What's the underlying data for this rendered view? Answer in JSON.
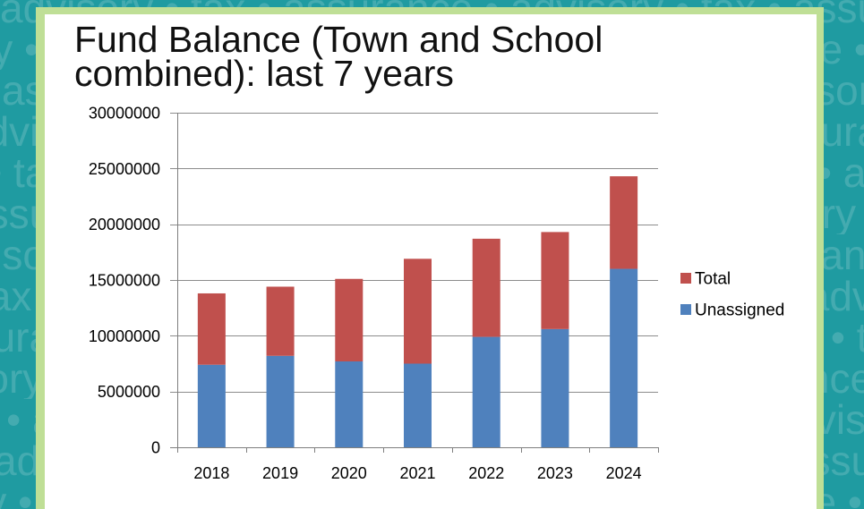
{
  "background": {
    "watermark_text": "advisory • tax • assurance •",
    "color": "#1f9ba1",
    "frame_color": "#bfdf96"
  },
  "chart_data": {
    "type": "bar",
    "stacked": true,
    "title": "Fund Balance (Town and School combined): last 7 years",
    "xlabel": "",
    "ylabel": "",
    "categories": [
      "2018",
      "2019",
      "2020",
      "2021",
      "2022",
      "2023",
      "2024"
    ],
    "series": [
      {
        "name": "Unassigned",
        "color": "#4f81bd",
        "values": [
          7400000,
          8200000,
          7700000,
          7500000,
          9900000,
          10600000,
          16000000
        ]
      },
      {
        "name": "Total",
        "color": "#c0504d",
        "values": [
          6400000,
          6200000,
          7400000,
          9400000,
          8800000,
          8700000,
          8300000
        ]
      }
    ],
    "yticks": [
      0,
      5000000,
      10000000,
      15000000,
      20000000,
      25000000,
      30000000
    ],
    "ylim": [
      0,
      30000000
    ],
    "grid": true,
    "legend": "right"
  }
}
